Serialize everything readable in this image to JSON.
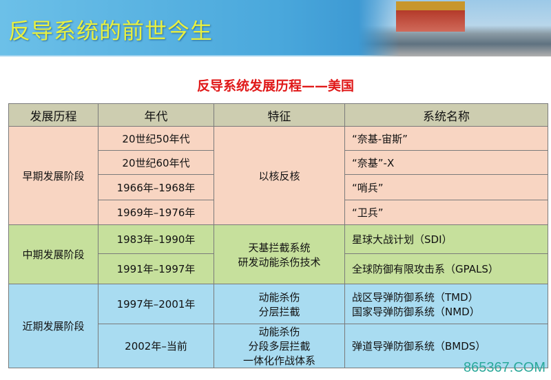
{
  "header": {
    "title": "反导系统的前世今生"
  },
  "subtitle": "反导系统发展历程——美国",
  "table": {
    "headers": [
      "发展历程",
      "年代",
      "特征",
      "系统名称"
    ],
    "groups": [
      {
        "stage": "早期发展阶段",
        "feature": "以核反核",
        "rows": [
          [
            "20世纪50年代",
            "“奈基-宙斯”"
          ],
          [
            "20世纪60年代",
            "“奈基”-X"
          ],
          [
            "1966年–1968年",
            "“哨兵”"
          ],
          [
            "1969年–1976年",
            "“卫兵”"
          ]
        ]
      },
      {
        "stage": "中期发展阶段",
        "feature": [
          "天基拦截系统",
          "研发动能杀伤技术"
        ],
        "rows": [
          [
            "1983年–1990年",
            "星球大战计划（SDI）"
          ],
          [
            "1991年–1997年",
            "全球防御有限攻击系（GPALS）"
          ]
        ]
      },
      {
        "stage": "近期发展阶段",
        "rows": [
          {
            "year": "1997年–2001年",
            "feature": [
              "动能杀伤",
              "分层拦截"
            ],
            "system": [
              "战区导弹防御系统（TMD）",
              "国家导弹防御系统（NMD）"
            ]
          },
          {
            "year": "2002年–当前",
            "feature": [
              "动能杀伤",
              "分段多层拦截",
              "一体化作战体系"
            ],
            "system": [
              "弹道导弹防御系统（BMDS）"
            ]
          }
        ]
      }
    ]
  },
  "watermark": "865367.COM",
  "colors": {
    "early": "#f8d5c2",
    "middle": "#c6e09c",
    "late": "#a9dcf1",
    "header": "#cdcdb0",
    "subtitle": "#e01818"
  }
}
